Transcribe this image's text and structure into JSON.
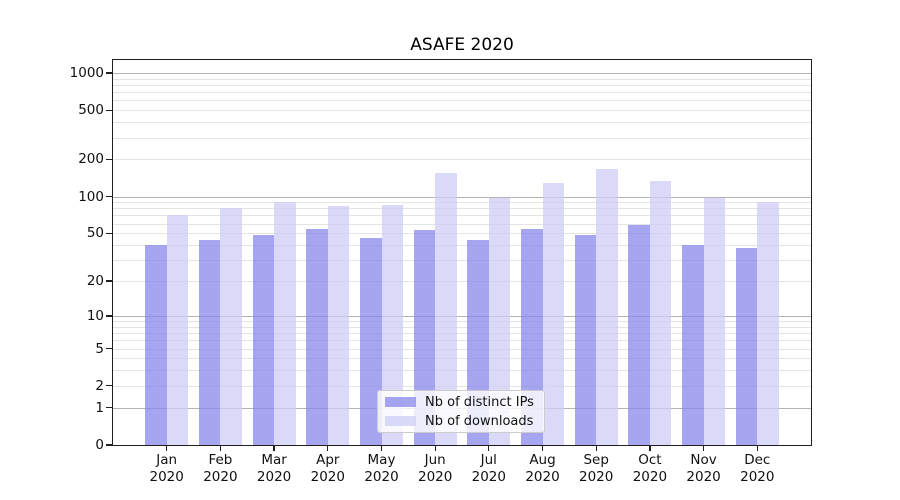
{
  "title": "ASAFE 2020",
  "chart_data": {
    "type": "bar",
    "title": "ASAFE 2020",
    "categories": [
      "Jan 2020",
      "Feb 2020",
      "Mar 2020",
      "Apr 2020",
      "May 2020",
      "Jun 2020",
      "Jul 2020",
      "Aug 2020",
      "Sep 2020",
      "Oct 2020",
      "Nov 2020",
      "Dec 2020"
    ],
    "series": [
      {
        "name": "Nb of distinct IPs",
        "color": "#a5a5f0",
        "values": [
          40,
          44,
          48,
          54,
          46,
          53,
          44,
          54,
          48,
          58,
          40,
          38
        ]
      },
      {
        "name": "Nb of downloads",
        "color": "#dadaf7",
        "values": [
          70,
          81,
          91,
          84,
          86,
          156,
          98,
          128,
          167,
          134,
          98,
          91
        ]
      }
    ],
    "xlabel": "",
    "ylabel": "",
    "y_scale": "log1p",
    "y_ticks": [
      0,
      1,
      2,
      5,
      10,
      20,
      50,
      100,
      200,
      500,
      1000
    ],
    "y_tick_labels": [
      "0",
      "1",
      "2",
      "5",
      "10",
      "20",
      "50",
      "100",
      "200",
      "500",
      "1000"
    ],
    "ylim": [
      0,
      1272
    ],
    "grid": true,
    "grid_which": "both",
    "legend_position": "lower center"
  },
  "legend": {
    "items": [
      {
        "label": "Nb of distinct IPs",
        "swatch_color": "rgba(135,135,235,0.75)"
      },
      {
        "label": "Nb of downloads",
        "swatch_color": "rgba(206,206,246,0.75)"
      }
    ]
  },
  "colors": {
    "bar_ips": "rgba(135,135,235,0.75)",
    "bar_downloads": "rgba(206,206,246,0.75)",
    "grid_major": "#b3b3b3",
    "grid_minor": "#e4e4e4",
    "spine": "#1f1f1f",
    "text": "#111111"
  }
}
